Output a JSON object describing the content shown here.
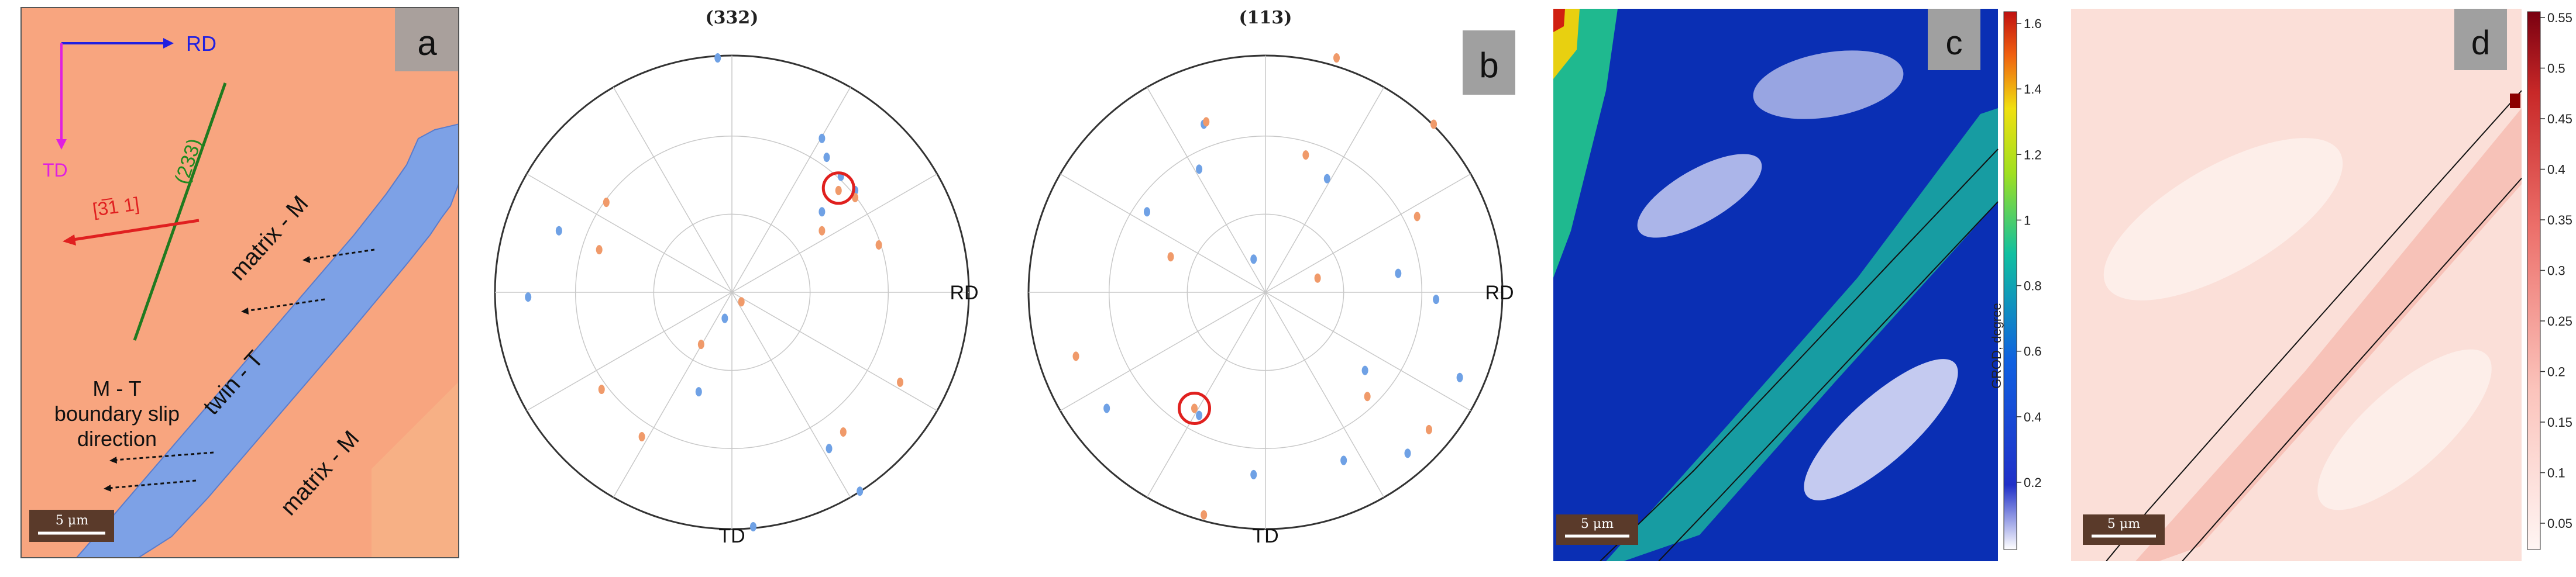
{
  "panels": {
    "a": {
      "letter": "a",
      "axis_rd": "RD",
      "axis_td": "TD",
      "plane_label": "(233)",
      "direction_label": "[3̅1 1]",
      "matrix_top": "matrix - M",
      "matrix_bottom": "matrix - M",
      "twin": "twin - T",
      "slip_line1": "M - T",
      "slip_line2": "boundary slip",
      "slip_line3": "direction",
      "scale_bar": "5 μm"
    },
    "b": {
      "letter": "b",
      "pf1_title": "(332)",
      "pf2_title": "(113)",
      "rd": "RD",
      "td": "TD"
    },
    "c": {
      "letter": "c",
      "scale_bar": "5 μm",
      "colorbar_label": "GROD, degree",
      "ticks": [
        "1.6",
        "1.4",
        "1.2",
        "1",
        "0.8",
        "0.6",
        "0.4",
        "0.2"
      ]
    },
    "d": {
      "letter": "d",
      "scale_bar": "5 μm",
      "ticks": [
        "0.55",
        "0.5",
        "0.45",
        "0.4",
        "0.35",
        "0.3",
        "0.25",
        "0.2",
        "0.15",
        "0.1",
        "0.05"
      ]
    }
  },
  "colors": {
    "matrix": "#f8a57f",
    "twin": "#7da1e6",
    "pole_blue": "#6fa1e5",
    "pole_orange": "#f09a6a",
    "highlight": "#e0201e",
    "label_box": "#a0a0a0"
  },
  "pole_figures": {
    "pf1": {
      "blue": [
        [
          -0.06,
          0.99
        ],
        [
          0.38,
          0.65
        ],
        [
          0.46,
          0.49
        ],
        [
          0.52,
          0.43
        ],
        [
          0.38,
          0.34
        ],
        [
          0.4,
          0.57
        ],
        [
          -0.73,
          0.26
        ],
        [
          -0.86,
          -0.02
        ],
        [
          -0.14,
          -0.42
        ],
        [
          -0.03,
          -0.11
        ],
        [
          0.41,
          -0.66
        ],
        [
          0.54,
          -0.84
        ],
        [
          0.09,
          -0.99
        ]
      ],
      "orange": [
        [
          0.45,
          0.43
        ],
        [
          0.52,
          0.4
        ],
        [
          0.38,
          0.26
        ],
        [
          0.62,
          0.2
        ],
        [
          -0.53,
          0.38
        ],
        [
          -0.56,
          0.18
        ],
        [
          -0.13,
          -0.22
        ],
        [
          0.04,
          -0.04
        ],
        [
          0.71,
          -0.38
        ],
        [
          0.47,
          -0.59
        ],
        [
          -0.55,
          -0.41
        ],
        [
          -0.38,
          -0.61
        ]
      ],
      "highlight": [
        0.45,
        0.44
      ]
    },
    "pf2": {
      "blue": [
        [
          -0.26,
          0.71
        ],
        [
          -0.28,
          0.52
        ],
        [
          0.26,
          0.48
        ],
        [
          -0.5,
          0.34
        ],
        [
          -0.05,
          0.14
        ],
        [
          0.56,
          0.08
        ],
        [
          0.72,
          -0.03
        ],
        [
          0.42,
          -0.33
        ],
        [
          -0.67,
          -0.49
        ],
        [
          -0.28,
          -0.52
        ],
        [
          -0.05,
          -0.77
        ],
        [
          0.33,
          -0.71
        ],
        [
          0.6,
          -0.68
        ],
        [
          0.82,
          -0.36
        ]
      ],
      "orange": [
        [
          0.3,
          0.99
        ],
        [
          -0.25,
          0.72
        ],
        [
          0.17,
          0.58
        ],
        [
          0.64,
          0.32
        ],
        [
          -0.4,
          0.15
        ],
        [
          0.22,
          0.06
        ],
        [
          -0.8,
          -0.27
        ],
        [
          -0.3,
          -0.49
        ],
        [
          0.43,
          -0.44
        ],
        [
          0.69,
          -0.58
        ],
        [
          -0.26,
          -0.94
        ],
        [
          0.71,
          0.71
        ]
      ],
      "highlight": [
        -0.3,
        -0.49
      ]
    }
  }
}
